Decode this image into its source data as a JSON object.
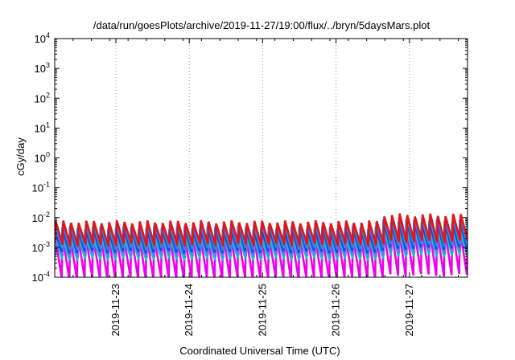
{
  "chart_data": {
    "type": "line",
    "title": "/data/run/goesPlots/archive/2019-11-27/19:00/flux/../bryn/5daysMars.plot",
    "xlabel": "Coordinated Universal Time (UTC)",
    "ylabel": "cGy/day",
    "yscale": "log",
    "ylim": [
      0.0001,
      10000
    ],
    "xlim": [
      "2019-11-22T04:00",
      "2019-11-27T19:00"
    ],
    "y_ticks": [
      {
        "base": "10",
        "exp": "-4"
      },
      {
        "base": "10",
        "exp": "-3"
      },
      {
        "base": "10",
        "exp": "-2"
      },
      {
        "base": "10",
        "exp": "-1"
      },
      {
        "base": "10",
        "exp": "0"
      },
      {
        "base": "10",
        "exp": "1"
      },
      {
        "base": "10",
        "exp": "2"
      },
      {
        "base": "10",
        "exp": "3"
      },
      {
        "base": "10",
        "exp": "4"
      }
    ],
    "x_ticks": [
      {
        "label": "2019-11-23",
        "t": "2019-11-23T00:00"
      },
      {
        "label": "2019-11-24",
        "t": "2019-11-24T00:00"
      },
      {
        "label": "2019-11-25",
        "t": "2019-11-25T00:00"
      },
      {
        "label": "2019-11-26",
        "t": "2019-11-26T00:00"
      },
      {
        "label": "2019-11-27",
        "t": "2019-11-27T00:00"
      }
    ],
    "grid": {
      "x": true,
      "y": false,
      "style": "dotted"
    },
    "legend": "none",
    "sawtooth_period_hours": 2.5,
    "series": [
      {
        "color": "#ee00ee",
        "peak": 0.0028,
        "trough": 9e-05
      },
      {
        "color": "#00c8c8",
        "peak": 0.0022,
        "trough": 0.0004
      },
      {
        "color": "#6e78e6",
        "peak": 0.0032,
        "trough": 0.0005
      },
      {
        "color": "#1e46dc",
        "peak": 0.0046,
        "trough": 0.0007
      },
      {
        "color": "#1e8cf0",
        "peak": 0.0058,
        "trough": 0.0009
      },
      {
        "color": "#e61414",
        "peak": 0.0072,
        "trough": 0.0012
      }
    ],
    "late_enhancement": {
      "start": "2019-11-26T15:00",
      "factor": 1.7
    }
  }
}
